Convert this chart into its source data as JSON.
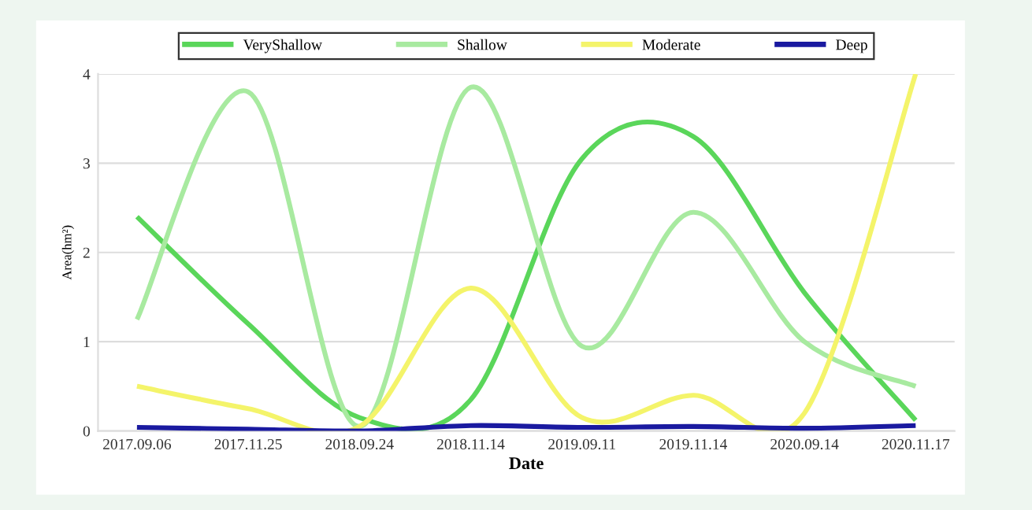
{
  "chart_data": {
    "type": "line",
    "xlabel": "Date",
    "ylabel": "Area(hm²)",
    "categories": [
      "2017.09.06",
      "2017.11.25",
      "2018.09.24",
      "2018.11.14",
      "2019.09.11",
      "2019.11.14",
      "2020.09.14",
      "2020.11.17"
    ],
    "series": [
      {
        "name": "VeryShallow",
        "color": "#5ad65a",
        "values": [
          2.4,
          1.2,
          0.15,
          0.35,
          3.05,
          3.3,
          1.55,
          0.12
        ]
      },
      {
        "name": "Shallow",
        "color": "#a8eaa0",
        "values": [
          1.25,
          3.8,
          0.05,
          3.85,
          0.95,
          2.45,
          1.0,
          0.5
        ]
      },
      {
        "name": "Moderate",
        "color": "#f4f46a",
        "values": [
          0.5,
          0.25,
          0.05,
          1.6,
          0.15,
          0.4,
          0.2,
          4.0
        ]
      },
      {
        "name": "Deep",
        "color": "#1a1aa0",
        "values": [
          0.04,
          0.02,
          0.0,
          0.06,
          0.04,
          0.05,
          0.03,
          0.06
        ]
      }
    ],
    "ylim": [
      0,
      4
    ],
    "yticks": [
      0,
      1,
      2,
      3,
      4
    ],
    "grid": "y",
    "legend": "top",
    "line_style": "solid",
    "marker": "none"
  }
}
